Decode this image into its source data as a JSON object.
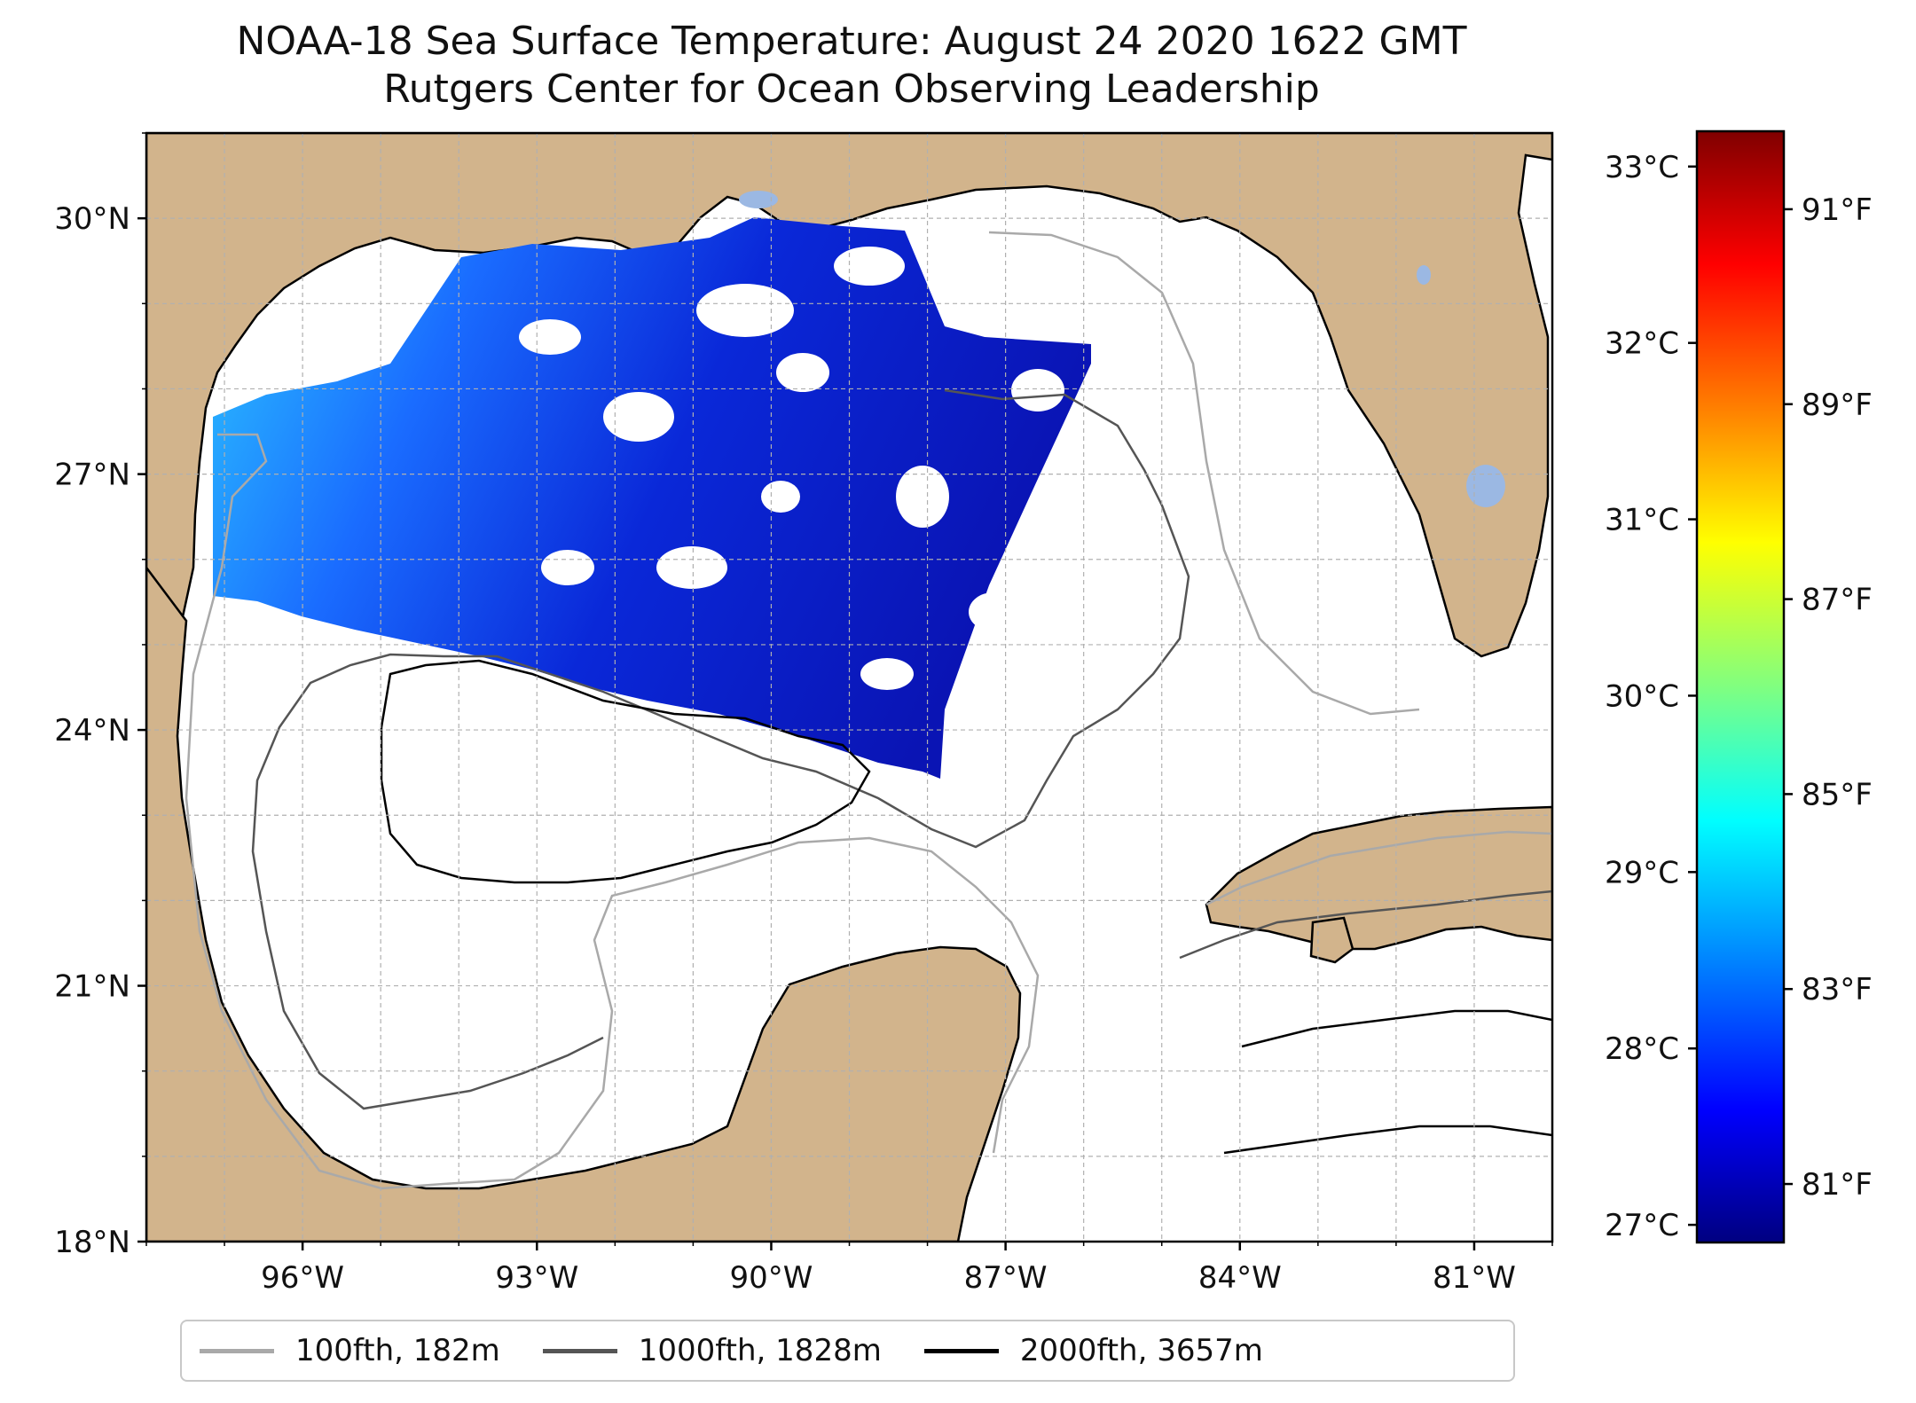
{
  "title": {
    "line1": "NOAA-18 Sea Surface Temperature: August 24 2020 1622 GMT",
    "line2": "Rutgers Center for Ocean Observing Leadership"
  },
  "map": {
    "lon_range": [
      -98,
      -80
    ],
    "lat_range": [
      18,
      31
    ],
    "lat_ticks": [
      {
        "value": 30,
        "label": "30°N"
      },
      {
        "value": 27,
        "label": "27°N"
      },
      {
        "value": 24,
        "label": "24°N"
      },
      {
        "value": 21,
        "label": "21°N"
      },
      {
        "value": 18,
        "label": "18°N"
      }
    ],
    "lon_ticks": [
      {
        "value": -96,
        "label": "96°W"
      },
      {
        "value": -93,
        "label": "93°W"
      },
      {
        "value": -90,
        "label": "90°W"
      },
      {
        "value": -87,
        "label": "87°W"
      },
      {
        "value": -84,
        "label": "84°W"
      },
      {
        "value": -81,
        "label": "81°W"
      }
    ],
    "colors": {
      "land": "#d2b48c",
      "lakes": "#9bb8e3",
      "water": "#ffffff",
      "grid": "#b0b0b0"
    }
  },
  "colorbar": {
    "celsius_range": [
      26.9,
      33.2
    ],
    "celsius_ticks": [
      {
        "value": 33,
        "label": "33°C"
      },
      {
        "value": 32,
        "label": "32°C"
      },
      {
        "value": 31,
        "label": "31°C"
      },
      {
        "value": 30,
        "label": "30°C"
      },
      {
        "value": 29,
        "label": "29°C"
      },
      {
        "value": 28,
        "label": "28°C"
      },
      {
        "value": 27,
        "label": "27°C"
      }
    ],
    "fahrenheit_range": [
      80.4,
      91.8
    ],
    "fahrenheit_ticks": [
      {
        "value": 91,
        "label": "91°F"
      },
      {
        "value": 89,
        "label": "89°F"
      },
      {
        "value": 87,
        "label": "87°F"
      },
      {
        "value": 85,
        "label": "85°F"
      },
      {
        "value": 83,
        "label": "83°F"
      },
      {
        "value": 81,
        "label": "81°F"
      }
    ],
    "colormap": [
      "#800000",
      "#ff0000",
      "#ff8000",
      "#ffff00",
      "#80ff80",
      "#00ffff",
      "#0080ff",
      "#0000ff",
      "#000080"
    ]
  },
  "legend": [
    {
      "label": "100fth, 182m",
      "color": "#a9a9a9"
    },
    {
      "label": "1000fth, 1828m",
      "color": "#555555"
    },
    {
      "label": "2000fth, 3657m",
      "color": "#000000"
    }
  ]
}
